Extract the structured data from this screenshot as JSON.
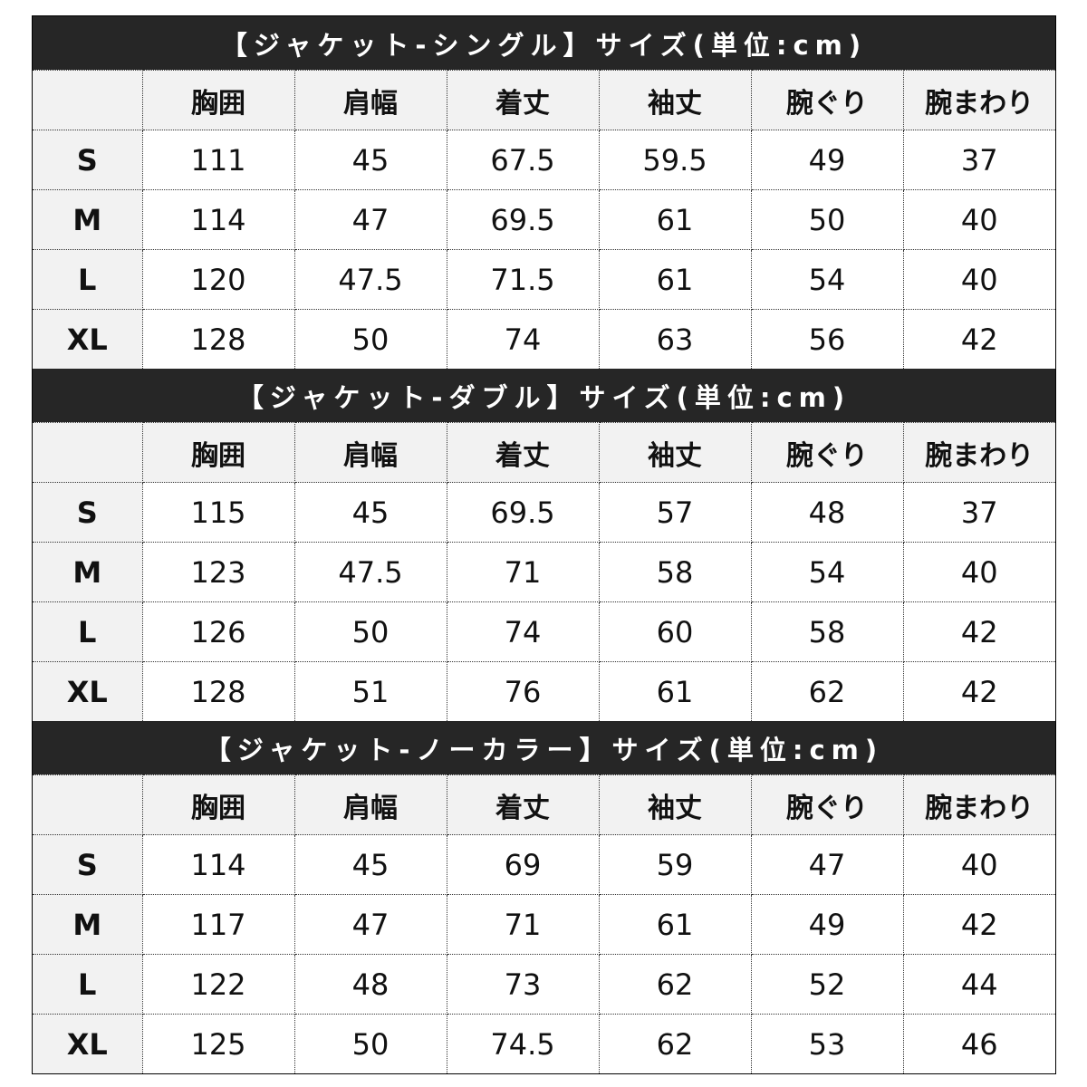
{
  "columns": [
    "胸囲",
    "肩幅",
    "着丈",
    "袖丈",
    "腕ぐり",
    "腕まわり"
  ],
  "sections": [
    {
      "title": "【ジャケット-シングル】サイズ(単位:cm)",
      "rows": [
        {
          "size": "S",
          "values": [
            "111",
            "45",
            "67.5",
            "59.5",
            "49",
            "37"
          ]
        },
        {
          "size": "M",
          "values": [
            "114",
            "47",
            "69.5",
            "61",
            "50",
            "40"
          ]
        },
        {
          "size": "L",
          "values": [
            "120",
            "47.5",
            "71.5",
            "61",
            "54",
            "40"
          ]
        },
        {
          "size": "XL",
          "values": [
            "128",
            "50",
            "74",
            "63",
            "56",
            "42"
          ]
        }
      ]
    },
    {
      "title": "【ジャケット-ダブル】サイズ(単位:cm)",
      "rows": [
        {
          "size": "S",
          "values": [
            "115",
            "45",
            "69.5",
            "57",
            "48",
            "37"
          ]
        },
        {
          "size": "M",
          "values": [
            "123",
            "47.5",
            "71",
            "58",
            "54",
            "40"
          ]
        },
        {
          "size": "L",
          "values": [
            "126",
            "50",
            "74",
            "60",
            "58",
            "42"
          ]
        },
        {
          "size": "XL",
          "values": [
            "128",
            "51",
            "76",
            "61",
            "62",
            "42"
          ]
        }
      ]
    },
    {
      "title": "【ジャケット-ノーカラー】サイズ(単位:cm)",
      "rows": [
        {
          "size": "S",
          "values": [
            "114",
            "45",
            "69",
            "59",
            "47",
            "40"
          ]
        },
        {
          "size": "M",
          "values": [
            "117",
            "47",
            "71",
            "61",
            "49",
            "42"
          ]
        },
        {
          "size": "L",
          "values": [
            "122",
            "48",
            "73",
            "62",
            "52",
            "44"
          ]
        },
        {
          "size": "XL",
          "values": [
            "125",
            "50",
            "74.5",
            "62",
            "53",
            "46"
          ]
        }
      ]
    }
  ]
}
